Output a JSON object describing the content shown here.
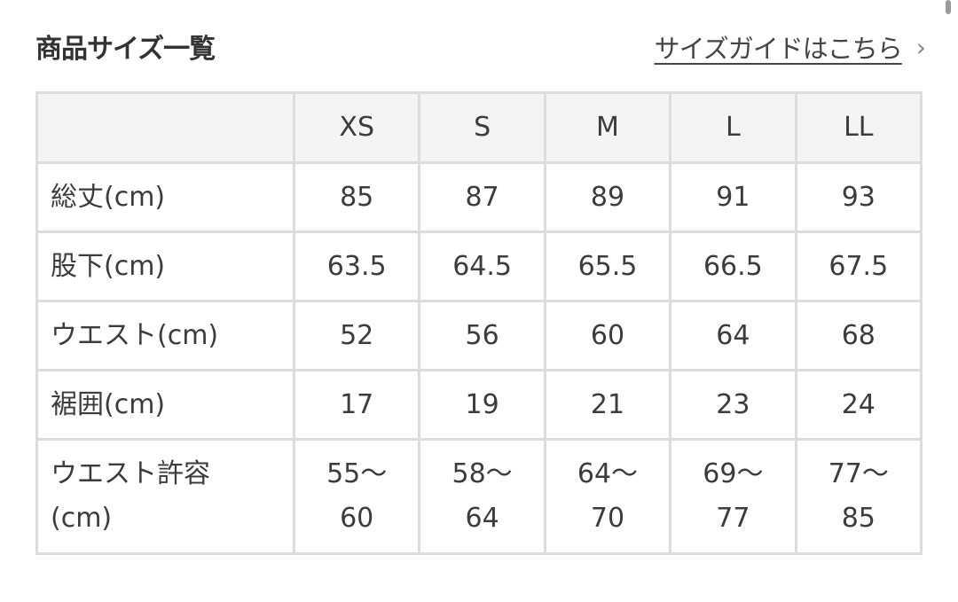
{
  "title": "商品サイズ一覧",
  "guide_link": "サイズガイドはこちら",
  "guide_icon": "chevron-right-icon",
  "table": {
    "corner": "",
    "sizes": [
      "XS",
      "S",
      "M",
      "L",
      "LL"
    ],
    "rows": [
      {
        "label": "総丈(cm)",
        "values": [
          "85",
          "87",
          "89",
          "91",
          "93"
        ]
      },
      {
        "label": "股下(cm)",
        "values": [
          "63.5",
          "64.5",
          "65.5",
          "66.5",
          "67.5"
        ]
      },
      {
        "label": "ウエスト(cm)",
        "values": [
          "52",
          "56",
          "60",
          "64",
          "68"
        ]
      },
      {
        "label": "裾囲(cm)",
        "values": [
          "17",
          "19",
          "21",
          "23",
          "24"
        ]
      },
      {
        "label": "ウエスト許容(cm)",
        "values": [
          "55〜60",
          "58〜64",
          "64〜70",
          "69〜77",
          "77〜85"
        ]
      }
    ]
  }
}
